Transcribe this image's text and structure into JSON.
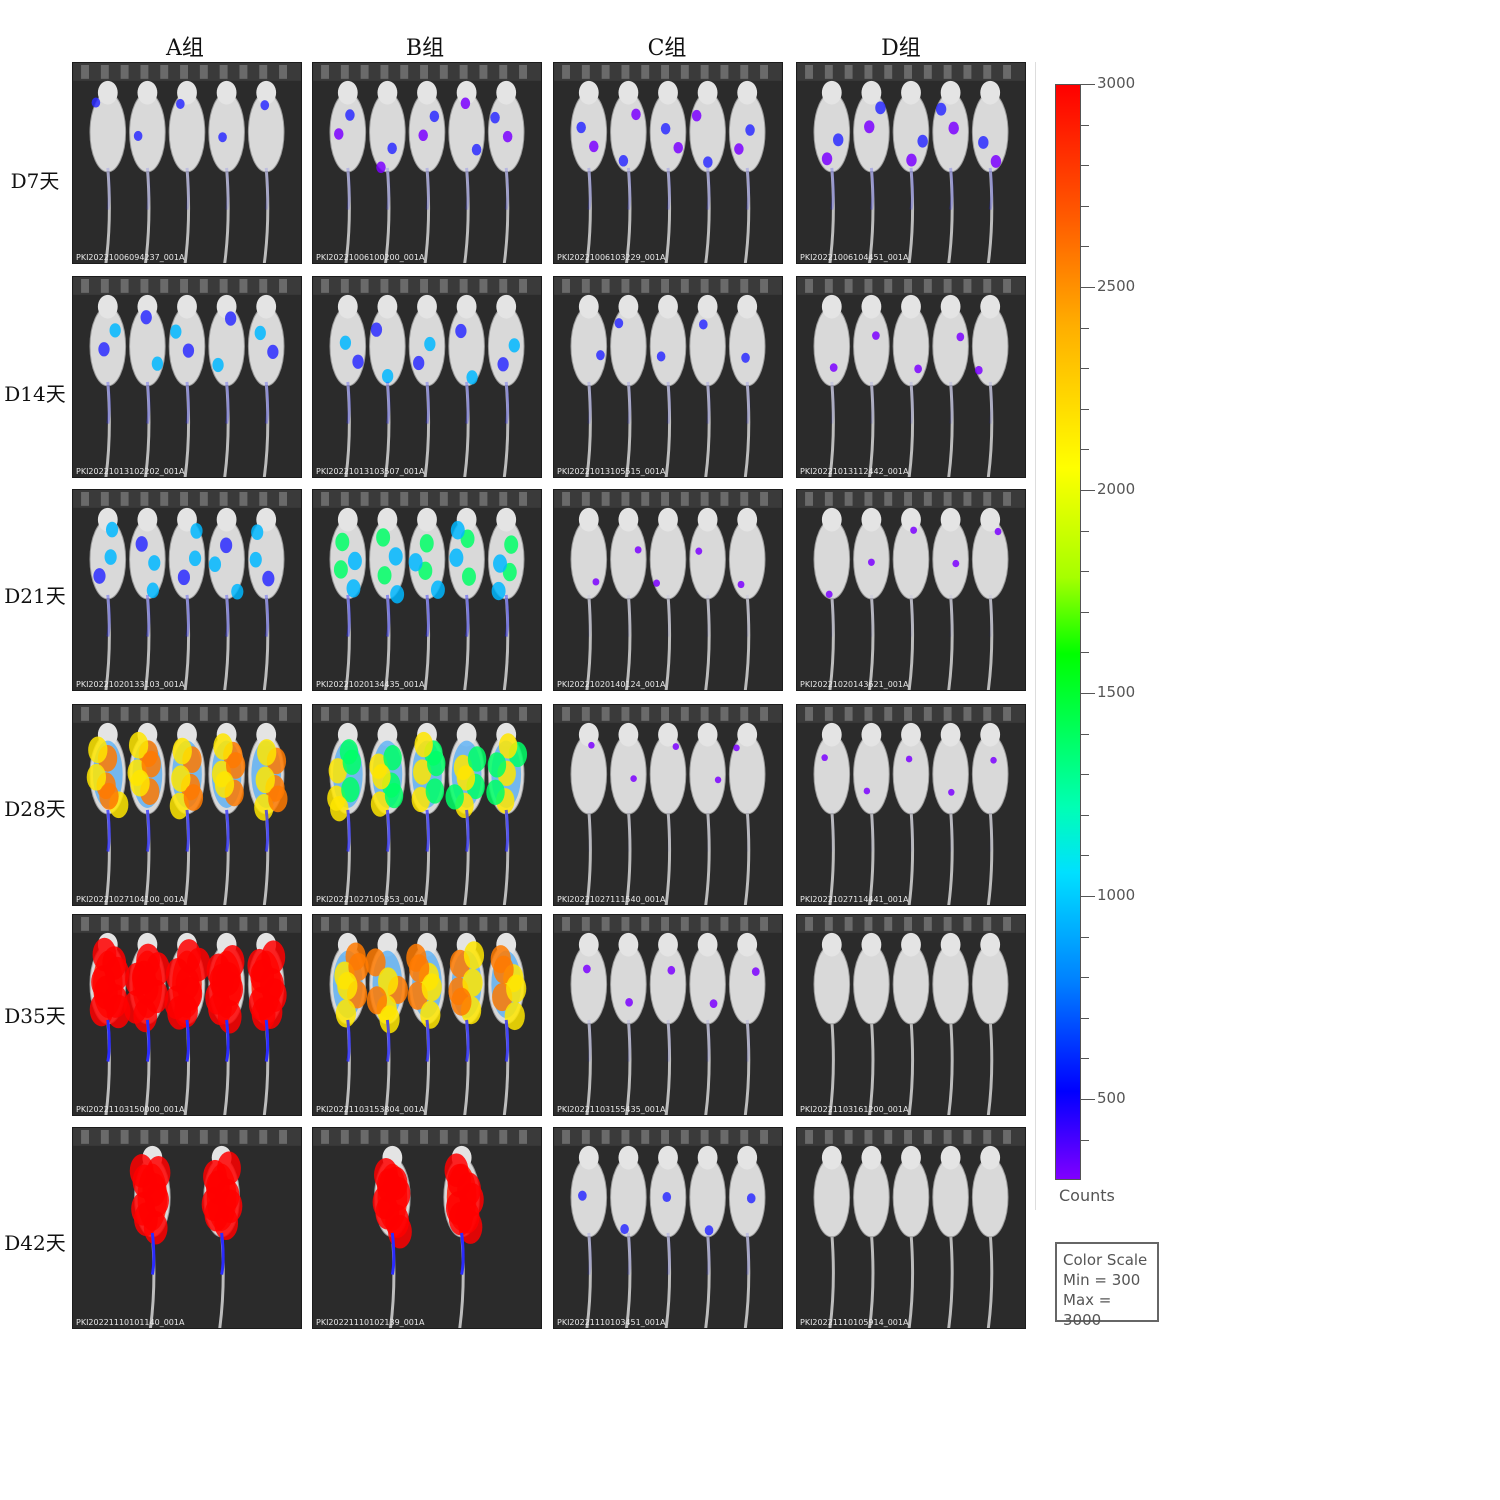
{
  "columns": [
    "A组",
    "B组",
    "C组",
    "D组"
  ],
  "rows": [
    {
      "label": "D7天",
      "ids": [
        "PKI20221006094237_001A",
        "PKI20221006100200_001A",
        "PKI20221006103229_001A",
        "PKI20221006104451_001A"
      ]
    },
    {
      "label": "D14天",
      "ids": [
        "PKI20221013102202_001A",
        "PKI20221013103507_001A",
        "PKI20221013105515_001A",
        "PKI20221013112442_001A"
      ]
    },
    {
      "label": "D21天",
      "ids": [
        "PKI20221020133103_001A",
        "PKI20221020134435_001A",
        "PKI20221020140124_001A",
        "PKI20221020143621_001A"
      ]
    },
    {
      "label": "D28天",
      "ids": [
        "PKI20221027104100_001A",
        "PKI20221027105353_001A",
        "PKI20221027111540_001A",
        "PKI20221027114441_001A"
      ]
    },
    {
      "label": "D35天",
      "ids": [
        "PKI20221103150000_001A",
        "PKI20221103153804_001A",
        "PKI20221103155435_001A",
        "PKI20221103161200_001A"
      ]
    },
    {
      "label": "D42天",
      "ids": [
        "PKI20221110101140_001A",
        "PKI20221110102139_001A",
        "PKI20221110103451_001A",
        "PKI20221110105914_001A"
      ]
    }
  ],
  "colorbar": {
    "ticks": [
      "3000",
      "2500",
      "2000",
      "1500",
      "1000",
      "500"
    ],
    "unit_label": "Counts",
    "box_title": "Color Scale",
    "box_min": "Min = 300",
    "box_max": "Max = 3000",
    "min": 300,
    "max": 3000
  },
  "signal_levels": [
    [
      0.15,
      0.2,
      0.2,
      0.25
    ],
    [
      0.3,
      0.3,
      0.15,
      0.1
    ],
    [
      0.35,
      0.45,
      0.05,
      0.05
    ],
    [
      0.75,
      0.7,
      0.03,
      0.03
    ],
    [
      1.0,
      0.8,
      0.1,
      0.0
    ],
    [
      1.0,
      1.0,
      0.15,
      0.0
    ]
  ],
  "mice_count": [
    [
      5,
      5,
      5,
      5
    ],
    [
      5,
      5,
      5,
      5
    ],
    [
      5,
      5,
      5,
      5
    ],
    [
      5,
      5,
      5,
      5
    ],
    [
      5,
      5,
      5,
      5
    ],
    [
      2,
      2,
      5,
      5
    ]
  ]
}
